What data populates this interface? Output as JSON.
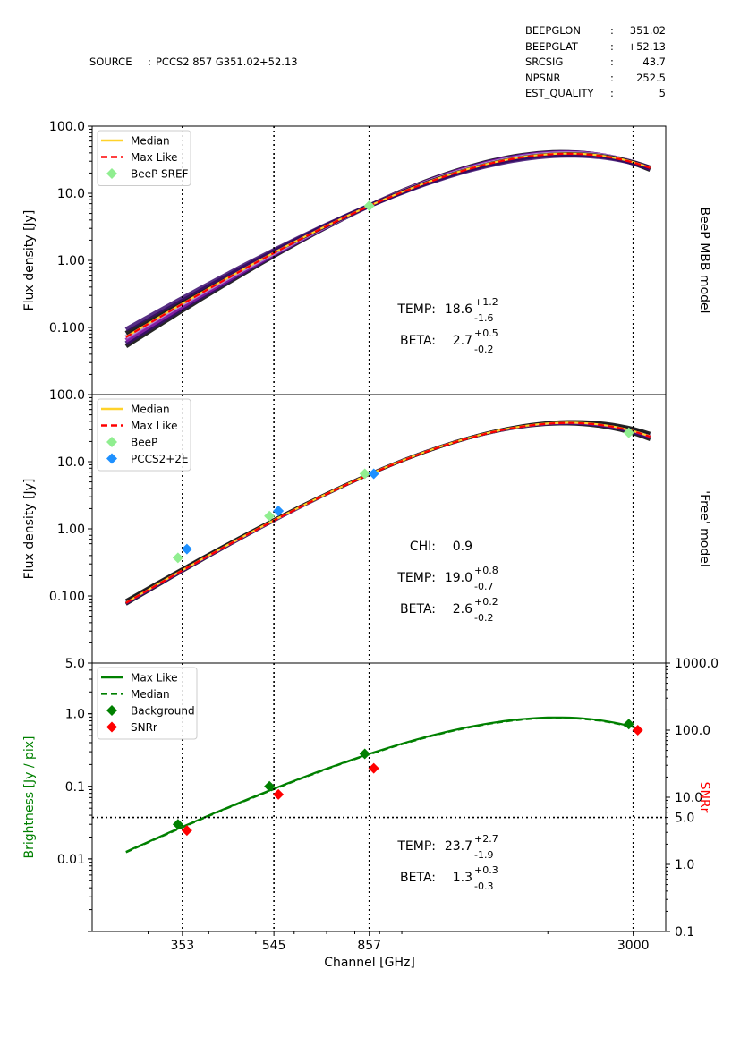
{
  "header": {
    "source_label": "SOURCE",
    "source_sep": ":",
    "source_value": "PCCS2 857 G351.02+52.13",
    "fields": [
      {
        "key": "BEEPGLON",
        "sep": ":",
        "value": "351.02"
      },
      {
        "key": "BEEPGLAT",
        "sep": ":",
        "value": "+52.13"
      },
      {
        "key": "SRCSIG",
        "sep": ":",
        "value": "43.7"
      },
      {
        "key": "NPSNR",
        "sep": ":",
        "value": "252.5"
      },
      {
        "key": "EST_QUALITY",
        "sep": ":",
        "value": "5"
      }
    ]
  },
  "colors": {
    "median": "#ffd22a",
    "maxlike": "#ff0000",
    "beep": "#90ee90",
    "pccs": "#1e90ff",
    "green": "#008000",
    "snr": "#ff0000",
    "ensemble_dark": "#000000",
    "ensemble_mid": "#3a0a6e",
    "ensemble_light": "#8a1aa8",
    "ensemble_pale": "#b9a0d8"
  },
  "chart_data": [
    {
      "type": "line",
      "id": "mbb",
      "ylabel": "Flux density  [Jy]",
      "right_label": "BeeP MBB model",
      "ylim": [
        0.01,
        100
      ],
      "yticks": [
        "100.0",
        "10.0",
        "1.00",
        "0.100"
      ],
      "ytick_values": [
        100,
        10,
        1,
        0.1
      ],
      "legend": [
        "Median",
        "Max Like",
        "BeeP SREF"
      ],
      "points": {
        "BeeP SREF": [
          {
            "freq": 857,
            "flux": 6.5
          }
        ]
      },
      "median": {
        "temp": 18.6,
        "beta": 2.7,
        "s857": 6.5
      },
      "annotations": [
        {
          "label": "TEMP:",
          "value": "18.6",
          "plus": "+1.2",
          "minus": "-1.6"
        },
        {
          "label": "BETA:",
          "value": "2.7",
          "plus": "+0.5",
          "minus": "-0.2"
        }
      ]
    },
    {
      "type": "line",
      "id": "free",
      "ylabel": "Flux density  [Jy]",
      "right_label": "'Free' model",
      "ylim": [
        0.01,
        100
      ],
      "yticks": [
        "100.0",
        "10.0",
        "1.00",
        "0.100"
      ],
      "ytick_values": [
        100,
        10,
        1,
        0.1
      ],
      "legend": [
        "Median",
        "Max Like",
        "BeeP",
        "PCCS2+2E"
      ],
      "points": {
        "BeeP": [
          {
            "freq": 353,
            "flux": 0.37
          },
          {
            "freq": 545,
            "flux": 1.55
          },
          {
            "freq": 857,
            "flux": 6.6
          },
          {
            "freq": 3000,
            "flux": 27
          }
        ],
        "PCCS2+2E": [
          {
            "freq": 353,
            "flux": 0.5
          },
          {
            "freq": 545,
            "flux": 1.85
          },
          {
            "freq": 857,
            "flux": 6.6
          }
        ]
      },
      "median": {
        "temp": 19.0,
        "beta": 2.6,
        "s857": 6.5
      },
      "annotations": [
        {
          "label": "CHI:",
          "value": "0.9",
          "plus": "",
          "minus": ""
        },
        {
          "label": "TEMP:",
          "value": "19.0",
          "plus": "+0.8",
          "minus": "-0.7"
        },
        {
          "label": "BETA:",
          "value": "2.6",
          "plus": "+0.2",
          "minus": "-0.2"
        }
      ]
    },
    {
      "type": "line",
      "id": "background",
      "ylabel": "Brightness [Jy / pix]",
      "right_label": "SNRr",
      "ylim": [
        0.001,
        5
      ],
      "yticks": [
        "5.0",
        "1.0",
        "0.1",
        "0.01"
      ],
      "ytick_values": [
        5,
        1,
        0.1,
        0.01
      ],
      "right_ylim": [
        0.1,
        1000
      ],
      "right_yticks": [
        "1000.0",
        "100.0",
        "10.0",
        "5.0",
        "1.0",
        "0.1"
      ],
      "right_ytick_values": [
        1000,
        100,
        10,
        5,
        1,
        0.1
      ],
      "snr_threshold": 5,
      "legend": [
        "Max Like",
        "Median",
        "Background",
        "SNRr"
      ],
      "points": {
        "Background": [
          {
            "freq": 353,
            "flux": 0.03
          },
          {
            "freq": 545,
            "flux": 0.1
          },
          {
            "freq": 857,
            "flux": 0.28
          },
          {
            "freq": 3000,
            "flux": 0.72
          }
        ],
        "SNRr": [
          {
            "freq": 353,
            "snr": 3.2
          },
          {
            "freq": 545,
            "snr": 11
          },
          {
            "freq": 857,
            "snr": 27
          },
          {
            "freq": 3000,
            "snr": 100
          }
        ]
      },
      "median": {
        "temp": 23.7,
        "beta": 1.3,
        "s857": 0.28
      },
      "annotations": [
        {
          "label": "TEMP:",
          "value": "23.7",
          "plus": "+2.7",
          "minus": "-1.9"
        },
        {
          "label": "BETA:",
          "value": "1.3",
          "plus": "+0.3",
          "minus": "-0.3"
        }
      ]
    }
  ],
  "xaxis": {
    "label": "Channel [GHz]",
    "ticks": [
      {
        "freq": 353,
        "label": "353"
      },
      {
        "freq": 545,
        "label": "545"
      },
      {
        "freq": 857,
        "label": "857"
      },
      {
        "freq": 3000,
        "label": "3000"
      }
    ],
    "xlim": [
      230,
      3500
    ],
    "curve_range": [
      270,
      3250
    ]
  }
}
